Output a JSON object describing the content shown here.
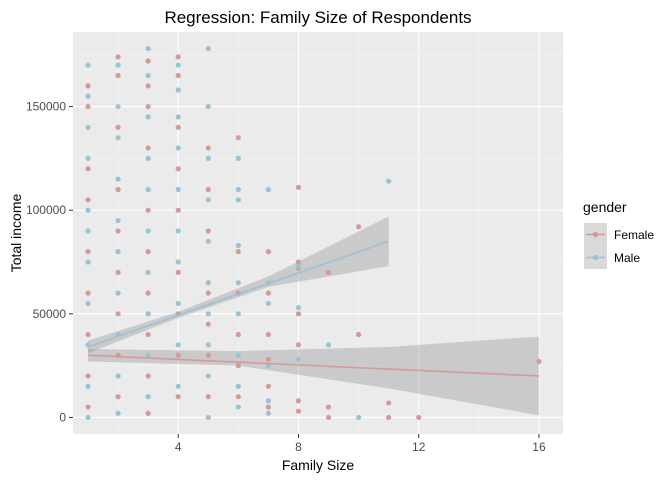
{
  "chart_data": {
    "type": "scatter",
    "title": "Regression: Family Size of Respondents",
    "xlabel": "Family Size",
    "ylabel": "Total income",
    "xlim": [
      0.5,
      16.8
    ],
    "ylim": [
      -8000,
      186000
    ],
    "x_ticks": [
      4,
      8,
      12,
      16
    ],
    "x_tick_labels": [
      "4",
      "8",
      "12",
      "16"
    ],
    "y_ticks": [
      0,
      50000,
      100000,
      150000
    ],
    "y_tick_labels": [
      "0",
      "50000",
      "100000",
      "150000"
    ],
    "grid": true,
    "legend": {
      "title": "gender",
      "position": "right"
    },
    "series": [
      {
        "name": "Female",
        "color": "#d49a98",
        "points": [
          [
            1,
            160000
          ],
          [
            1,
            150000
          ],
          [
            1,
            120000
          ],
          [
            1,
            105000
          ],
          [
            1,
            80000
          ],
          [
            1,
            60000
          ],
          [
            1,
            40000
          ],
          [
            1,
            20000
          ],
          [
            1,
            5000
          ],
          [
            2,
            174000
          ],
          [
            2,
            165000
          ],
          [
            2,
            140000
          ],
          [
            2,
            110000
          ],
          [
            2,
            90000
          ],
          [
            2,
            70000
          ],
          [
            2,
            50000
          ],
          [
            2,
            30000
          ],
          [
            2,
            10000
          ],
          [
            3,
            172000
          ],
          [
            3,
            160000
          ],
          [
            3,
            150000
          ],
          [
            3,
            130000
          ],
          [
            3,
            100000
          ],
          [
            3,
            80000
          ],
          [
            3,
            60000
          ],
          [
            3,
            40000
          ],
          [
            3,
            20000
          ],
          [
            3,
            2000
          ],
          [
            4,
            174000
          ],
          [
            4,
            165000
          ],
          [
            4,
            140000
          ],
          [
            4,
            120000
          ],
          [
            4,
            100000
          ],
          [
            4,
            70000
          ],
          [
            4,
            50000
          ],
          [
            4,
            30000
          ],
          [
            4,
            10000
          ],
          [
            5,
            130000
          ],
          [
            5,
            110000
          ],
          [
            5,
            90000
          ],
          [
            5,
            60000
          ],
          [
            5,
            45000
          ],
          [
            5,
            30000
          ],
          [
            5,
            10000
          ],
          [
            6,
            135000
          ],
          [
            6,
            80000
          ],
          [
            6,
            60000
          ],
          [
            6,
            40000
          ],
          [
            6,
            25000
          ],
          [
            6,
            10000
          ],
          [
            7,
            80000
          ],
          [
            7,
            60000
          ],
          [
            7,
            40000
          ],
          [
            7,
            28000
          ],
          [
            7,
            15000
          ],
          [
            7,
            5000
          ],
          [
            8,
            111000
          ],
          [
            8,
            75000
          ],
          [
            8,
            72000
          ],
          [
            8,
            50000
          ],
          [
            8,
            35000
          ],
          [
            8,
            8000
          ],
          [
            8,
            3000
          ],
          [
            9,
            70000
          ],
          [
            9,
            5000
          ],
          [
            9,
            0
          ],
          [
            10,
            92000
          ],
          [
            10,
            40000
          ],
          [
            11,
            7000
          ],
          [
            11,
            0
          ],
          [
            12,
            0
          ],
          [
            16,
            27000
          ]
        ],
        "fit": {
          "x": [
            1,
            16
          ],
          "y": [
            30000,
            20000
          ],
          "band": [
            [
              1,
              33000,
              27000
            ],
            [
              6,
              32000,
              25000
            ],
            [
              11,
              34000,
              14000
            ],
            [
              16,
              39000,
              1000
            ]
          ]
        }
      },
      {
        "name": "Male",
        "color": "#99c3d4",
        "points": [
          [
            1,
            170000
          ],
          [
            1,
            155000
          ],
          [
            1,
            140000
          ],
          [
            1,
            125000
          ],
          [
            1,
            100000
          ],
          [
            1,
            90000
          ],
          [
            1,
            75000
          ],
          [
            1,
            55000
          ],
          [
            1,
            35000
          ],
          [
            1,
            15000
          ],
          [
            1,
            0
          ],
          [
            2,
            170000
          ],
          [
            2,
            150000
          ],
          [
            2,
            135000
          ],
          [
            2,
            115000
          ],
          [
            2,
            95000
          ],
          [
            2,
            80000
          ],
          [
            2,
            60000
          ],
          [
            2,
            40000
          ],
          [
            2,
            20000
          ],
          [
            2,
            2000
          ],
          [
            3,
            178000
          ],
          [
            3,
            165000
          ],
          [
            3,
            145000
          ],
          [
            3,
            125000
          ],
          [
            3,
            110000
          ],
          [
            3,
            90000
          ],
          [
            3,
            70000
          ],
          [
            3,
            50000
          ],
          [
            3,
            30000
          ],
          [
            3,
            10000
          ],
          [
            4,
            170000
          ],
          [
            4,
            158000
          ],
          [
            4,
            145000
          ],
          [
            4,
            130000
          ],
          [
            4,
            110000
          ],
          [
            4,
            90000
          ],
          [
            4,
            75000
          ],
          [
            4,
            55000
          ],
          [
            4,
            35000
          ],
          [
            4,
            15000
          ],
          [
            5,
            178000
          ],
          [
            5,
            150000
          ],
          [
            5,
            125000
          ],
          [
            5,
            105000
          ],
          [
            5,
            85000
          ],
          [
            5,
            65000
          ],
          [
            5,
            50000
          ],
          [
            5,
            35000
          ],
          [
            5,
            20000
          ],
          [
            5,
            0
          ],
          [
            6,
            125000
          ],
          [
            6,
            110000
          ],
          [
            6,
            105000
          ],
          [
            6,
            83000
          ],
          [
            6,
            65000
          ],
          [
            6,
            50000
          ],
          [
            6,
            30000
          ],
          [
            6,
            15000
          ],
          [
            6,
            5000
          ],
          [
            7,
            110000
          ],
          [
            7,
            65000
          ],
          [
            7,
            55000
          ],
          [
            7,
            25000
          ],
          [
            7,
            8000
          ],
          [
            7,
            2000
          ],
          [
            8,
            73000
          ],
          [
            8,
            53000
          ],
          [
            8,
            28000
          ],
          [
            9,
            35000
          ],
          [
            10,
            0
          ],
          [
            11,
            114000
          ]
        ],
        "fit": {
          "x": [
            1,
            11
          ],
          "y": [
            34000,
            85000
          ],
          "band": [
            [
              1,
              37000,
              31000
            ],
            [
              4,
              51000,
              48000
            ],
            [
              7,
              68000,
              63000
            ],
            [
              11,
              97000,
              73000
            ]
          ]
        }
      }
    ]
  }
}
